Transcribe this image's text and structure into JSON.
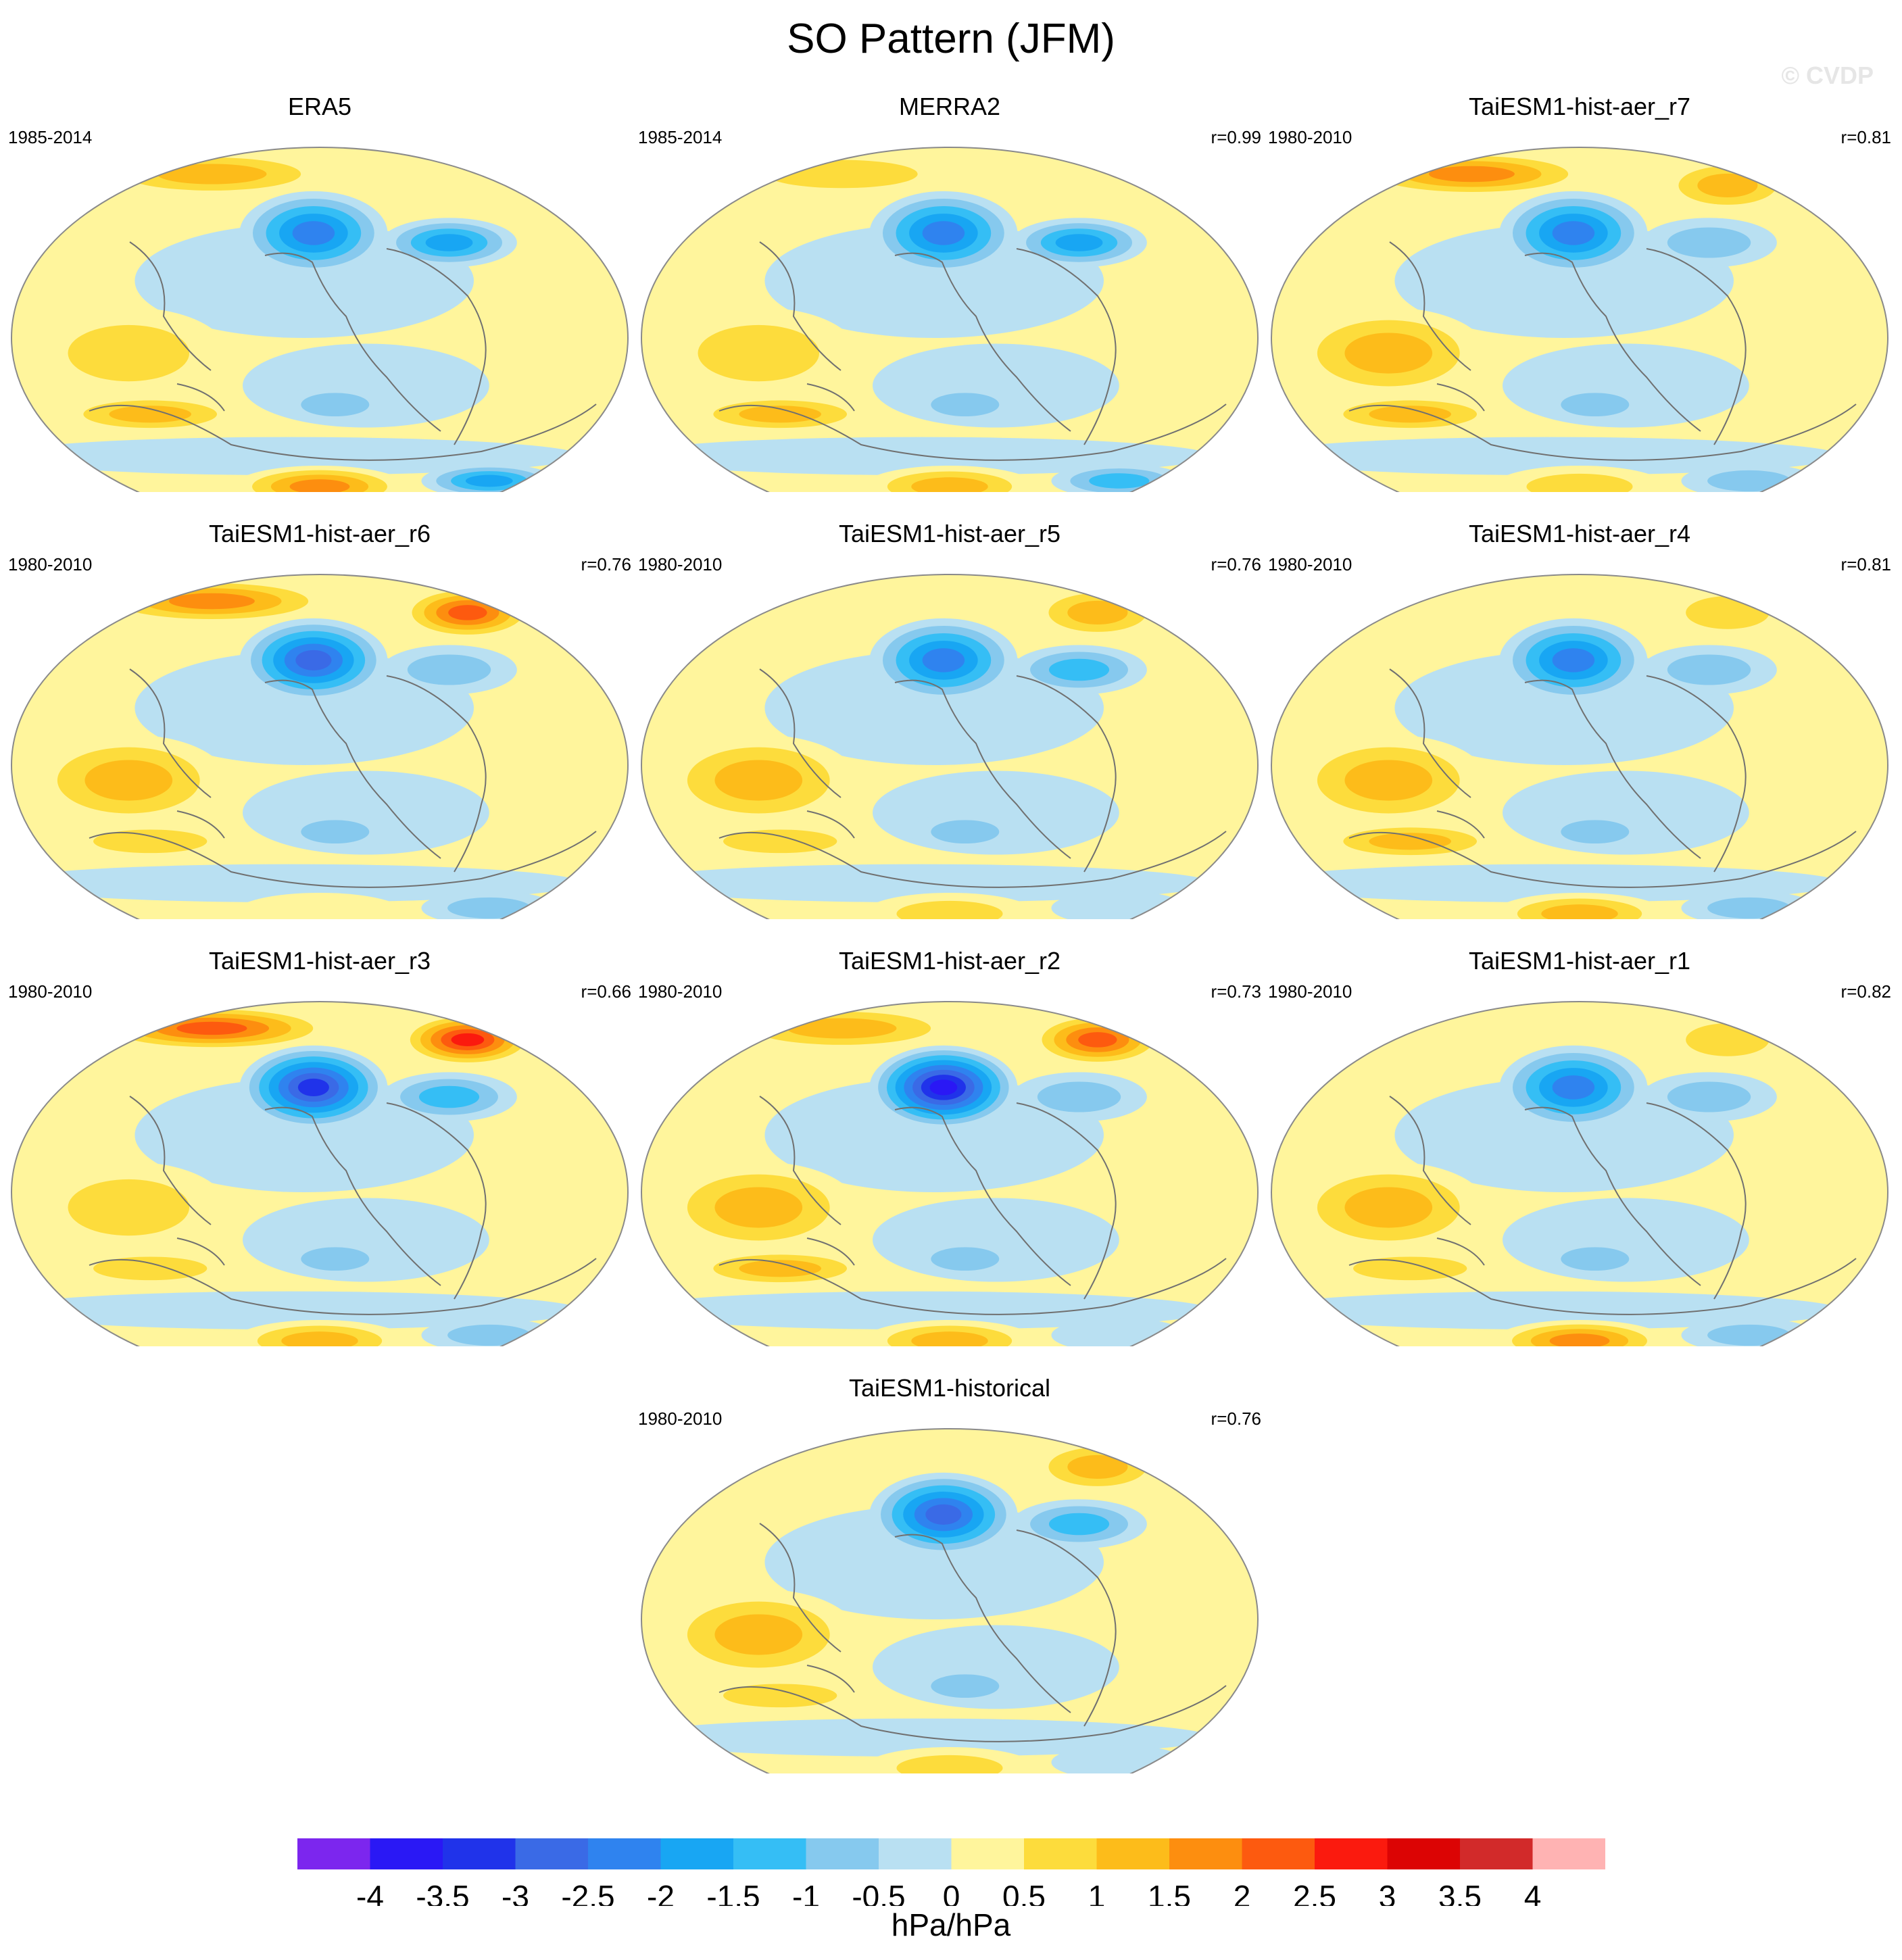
{
  "title": "SO Pattern (JFM)",
  "watermark": "© CVDP",
  "colorbar": {
    "unit": "hPa/hPa",
    "levels": [
      -4,
      -3.5,
      -3,
      -2.5,
      -2,
      -1.5,
      -1,
      -0.5,
      0,
      0.5,
      1,
      1.5,
      2,
      2.5,
      3,
      3.5,
      4
    ],
    "labels": [
      "-4",
      "-3.5",
      "-3",
      "-2.5",
      "-2",
      "-1.5",
      "-1",
      "-0.5",
      "0",
      "0.5",
      "1",
      "1.5",
      "2",
      "2.5",
      "3",
      "3.5",
      "4"
    ],
    "colors": [
      "#7c26ee",
      "#2a18f5",
      "#2033ea",
      "#3a6ae6",
      "#2f83ef",
      "#18a6f3",
      "#35bef5",
      "#86c9ee",
      "#b9e0f2",
      "#fff59c",
      "#fddc3c",
      "#fdbc1a",
      "#fd8e0f",
      "#fd5a0f",
      "#fb1a0e",
      "#dc0404",
      "#d22a2a",
      "#ffb3b3"
    ]
  },
  "chart_data": [
    {
      "type": "map",
      "title": "ERA5",
      "period": "1985-2014",
      "r": "",
      "features": {
        "npac_low": -2.5,
        "natl_low": -2.0,
        "arctic_high": 1.5,
        "eurasia_high": 0.5,
        "swpac_high": 2.0,
        "spac_low": -1.0,
        "satl_low": -2.0,
        "indian_high": 1.0,
        "austr_high": 1.5
      }
    },
    {
      "type": "map",
      "title": "MERRA2",
      "period": "1985-2014",
      "r": "r=0.99",
      "features": {
        "npac_low": -2.5,
        "natl_low": -2.0,
        "arctic_high": 1.0,
        "eurasia_high": 0.5,
        "swpac_high": 1.5,
        "spac_low": -1.0,
        "satl_low": -1.5,
        "indian_high": 1.0,
        "austr_high": 1.5
      }
    },
    {
      "type": "map",
      "title": "TaiESM1-hist-aer_r7",
      "period": "1980-2010",
      "r": "r=0.81",
      "features": {
        "npac_low": -2.5,
        "natl_low": -1.0,
        "arctic_high": 2.0,
        "eurasia_high": 1.5,
        "swpac_high": 1.0,
        "spac_low": -1.0,
        "satl_low": -1.0,
        "indian_high": 1.5,
        "austr_high": 1.5
      }
    },
    {
      "type": "map",
      "title": "TaiESM1-hist-aer_r6",
      "period": "1980-2010",
      "r": "r=0.76",
      "features": {
        "npac_low": -3.0,
        "natl_low": -1.0,
        "arctic_high": 2.0,
        "eurasia_high": 2.5,
        "swpac_high": 0.5,
        "spac_low": -1.0,
        "satl_low": -1.0,
        "indian_high": 1.5,
        "austr_high": 1.0
      }
    },
    {
      "type": "map",
      "title": "TaiESM1-hist-aer_r5",
      "period": "1980-2010",
      "r": "r=0.76",
      "features": {
        "npac_low": -2.5,
        "natl_low": -1.5,
        "arctic_high": 0.5,
        "eurasia_high": 1.5,
        "swpac_high": 1.0,
        "spac_low": -1.0,
        "satl_low": -0.5,
        "indian_high": 1.5,
        "austr_high": 1.0
      }
    },
    {
      "type": "map",
      "title": "TaiESM1-hist-aer_r4",
      "period": "1980-2010",
      "r": "r=0.81",
      "features": {
        "npac_low": -2.5,
        "natl_low": -1.0,
        "arctic_high": 0.5,
        "eurasia_high": 1.0,
        "swpac_high": 1.5,
        "spac_low": -1.0,
        "satl_low": -1.0,
        "indian_high": 1.5,
        "austr_high": 1.5
      }
    },
    {
      "type": "map",
      "title": "TaiESM1-hist-aer_r3",
      "period": "1980-2010",
      "r": "r=0.66",
      "features": {
        "npac_low": -3.5,
        "natl_low": -1.5,
        "arctic_high": 2.5,
        "eurasia_high": 3.0,
        "swpac_high": 1.5,
        "spac_low": -1.0,
        "satl_low": -1.0,
        "indian_high": 1.0,
        "austr_high": 1.0
      }
    },
    {
      "type": "map",
      "title": "TaiESM1-hist-aer_r2",
      "period": "1980-2010",
      "r": "r=0.73",
      "features": {
        "npac_low": -4.0,
        "natl_low": -1.0,
        "arctic_high": 1.5,
        "eurasia_high": 2.5,
        "swpac_high": 1.5,
        "spac_low": -1.0,
        "satl_low": -0.5,
        "indian_high": 1.5,
        "austr_high": 1.5
      }
    },
    {
      "type": "map",
      "title": "TaiESM1-hist-aer_r1",
      "period": "1980-2010",
      "r": "r=0.82",
      "features": {
        "npac_low": -2.5,
        "natl_low": -1.0,
        "arctic_high": 0.5,
        "eurasia_high": 1.0,
        "swpac_high": 2.0,
        "spac_low": -1.0,
        "satl_low": -1.0,
        "indian_high": 1.5,
        "austr_high": 1.0
      }
    },
    {
      "type": "map",
      "title": "TaiESM1-historical",
      "period": "1980-2010",
      "r": "r=0.76",
      "features": {
        "npac_low": -3.0,
        "natl_low": -1.5,
        "arctic_high": 0.5,
        "eurasia_high": 1.5,
        "swpac_high": 1.0,
        "spac_low": -1.0,
        "satl_low": -0.5,
        "indian_high": 1.5,
        "austr_high": 1.0
      }
    }
  ]
}
